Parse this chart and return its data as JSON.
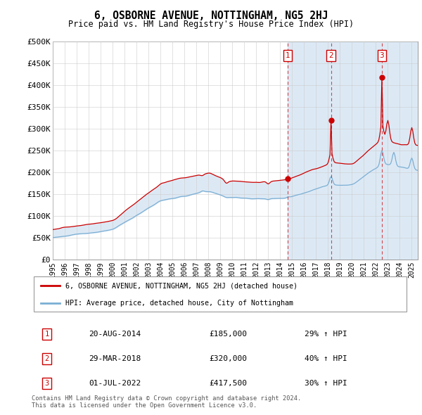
{
  "title": "6, OSBORNE AVENUE, NOTTINGHAM, NG5 2HJ",
  "subtitle": "Price paid vs. HM Land Registry's House Price Index (HPI)",
  "ylabel_ticks": [
    "£0",
    "£50K",
    "£100K",
    "£150K",
    "£200K",
    "£250K",
    "£300K",
    "£350K",
    "£400K",
    "£450K",
    "£500K"
  ],
  "ytick_values": [
    0,
    50000,
    100000,
    150000,
    200000,
    250000,
    300000,
    350000,
    400000,
    450000,
    500000
  ],
  "xlim_start": 1995.0,
  "xlim_end": 2025.5,
  "ylim_min": 0,
  "ylim_max": 500000,
  "grid_color": "#cccccc",
  "legend_label_red": "6, OSBORNE AVENUE, NOTTINGHAM, NG5 2HJ (detached house)",
  "legend_label_blue": "HPI: Average price, detached house, City of Nottingham",
  "transactions": [
    {
      "num": 1,
      "date": "20-AUG-2014",
      "price": "£185,000",
      "change": "29% ↑ HPI",
      "x_year": 2014.63
    },
    {
      "num": 2,
      "date": "29-MAR-2018",
      "price": "£320,000",
      "change": "40% ↑ HPI",
      "x_year": 2018.25
    },
    {
      "num": 3,
      "date": "01-JUL-2022",
      "price": "£417,500",
      "change": "30% ↑ HPI",
      "x_year": 2022.5
    }
  ],
  "footer": "Contains HM Land Registry data © Crown copyright and database right 2024.\nThis data is licensed under the Open Government Licence v3.0.",
  "red_line_color": "#cc0000",
  "blue_line_color": "#7bafd4",
  "shade_color": "#dce9f5",
  "transaction_box_color": "#cc0000",
  "dashed_line_color": "#cc0000",
  "note_line_color": "#aaaaaa"
}
